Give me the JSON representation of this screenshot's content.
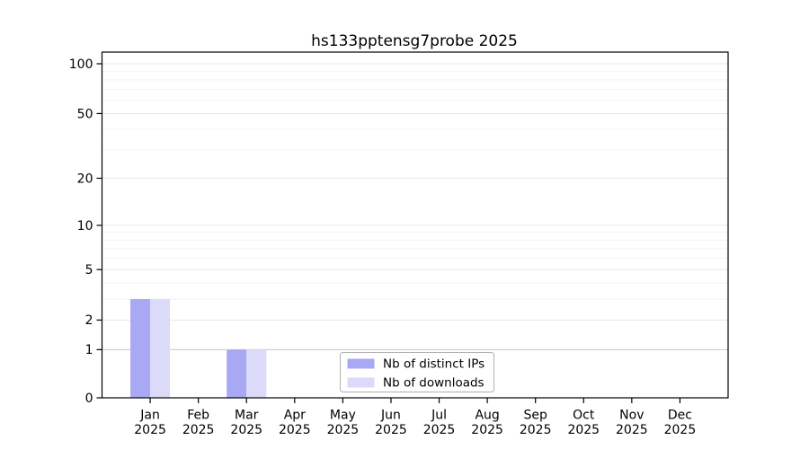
{
  "window": {
    "background": "#ffffff"
  },
  "chart_data": {
    "type": "bar",
    "title": "hs133pptensg7probe 2025",
    "x": {
      "categories": [
        "Jan",
        "Feb",
        "Mar",
        "Apr",
        "May",
        "Jun",
        "Jul",
        "Aug",
        "Sep",
        "Oct",
        "Nov",
        "Dec"
      ],
      "year": "2025"
    },
    "series": [
      {
        "name": "Nb of distinct IPs",
        "color": "#a8a8f4",
        "values": [
          3,
          0,
          1,
          0,
          0,
          0,
          0,
          0,
          0,
          0,
          0,
          0
        ]
      },
      {
        "name": "Nb of downloads",
        "color": "#dbdbf9",
        "values": [
          3,
          0,
          1,
          0,
          0,
          0,
          0,
          0,
          0,
          0,
          0,
          0
        ]
      }
    ],
    "y_axis": {
      "scale": "log10(1+v)",
      "tick_values": [
        0,
        1,
        2,
        5,
        10,
        20,
        50,
        100
      ],
      "tick_labels": [
        "0",
        "1",
        "2",
        "5",
        "10",
        "20",
        "50",
        "100"
      ],
      "minor_gridline_values": [
        3,
        4,
        6,
        7,
        8,
        9,
        30,
        40,
        60,
        70,
        80,
        90
      ],
      "top_value": 119
    },
    "legend": {
      "position": "bottom-center",
      "entries": [
        {
          "label": "Nb of distinct IPs",
          "color": "#a8a8f4"
        },
        {
          "label": "Nb of downloads",
          "color": "#dbdbf9"
        }
      ]
    },
    "grid": {
      "minor_color": "#f2f2f2",
      "major_color": "#e7e7e7",
      "threshold_line_color": "#c6c6c6"
    },
    "axis_color": "#000000",
    "legend_border_color": "#b0b0b0"
  }
}
